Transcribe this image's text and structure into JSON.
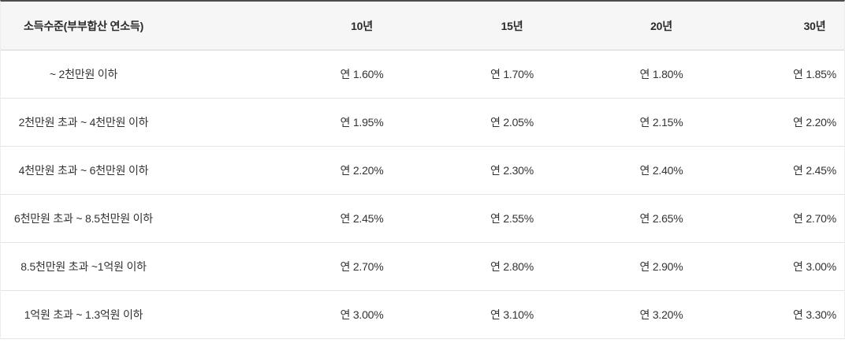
{
  "table": {
    "header": {
      "income_label": "소득수준(부부합산 연소득)",
      "terms": [
        "10년",
        "15년",
        "20년",
        "30년"
      ]
    },
    "rows": [
      {
        "income": "~ 2천만원 이하",
        "rates": [
          "연 1.60%",
          "연 1.70%",
          "연 1.80%",
          "연 1.85%"
        ]
      },
      {
        "income": "2천만원 초과 ~ 4천만원 이하",
        "rates": [
          "연 1.95%",
          "연 2.05%",
          "연 2.15%",
          "연 2.20%"
        ]
      },
      {
        "income": "4천만원 초과 ~ 6천만원 이하",
        "rates": [
          "연 2.20%",
          "연 2.30%",
          "연 2.40%",
          "연 2.45%"
        ]
      },
      {
        "income": "6천만원 초과 ~ 8.5천만원 이하",
        "rates": [
          "연 2.45%",
          "연 2.55%",
          "연 2.65%",
          "연 2.70%"
        ]
      },
      {
        "income": "8.5천만원 초과 ~1억원 이하",
        "rates": [
          "연 2.70%",
          "연 2.80%",
          "연 2.90%",
          "연 3.00%"
        ]
      },
      {
        "income": "1억원 초과 ~ 1.3억원 이하",
        "rates": [
          "연 3.00%",
          "연 3.10%",
          "연 3.20%",
          "연 3.30%"
        ]
      }
    ]
  },
  "theme": {
    "top_border_color": "#4d4d4d",
    "header_background": "#f6f6f7",
    "row_divider_color": "#e4e4e4",
    "text_color": "#333333"
  }
}
